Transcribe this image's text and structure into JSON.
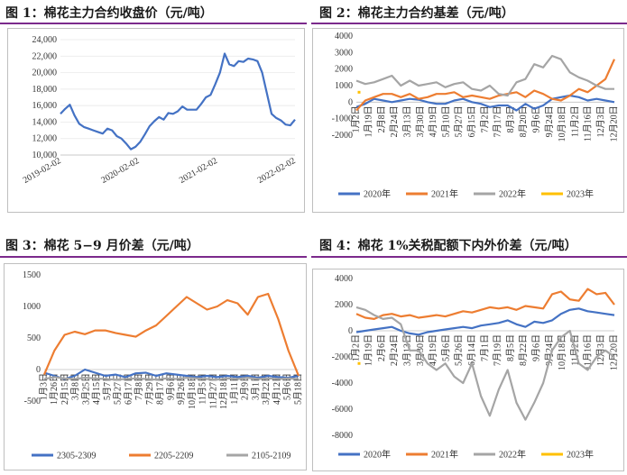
{
  "panels": [
    {
      "title": "图 1：棉花主力合约收盘价（元/吨）",
      "chart_data": {
        "type": "line",
        "y_ticks": [
          "10,000",
          "12,000",
          "14,000",
          "16,000",
          "18,000",
          "20,000",
          "22,000",
          "24,000"
        ],
        "x_ticks": [
          "2019-02-02",
          "2020-02-02",
          "2021-02-02",
          "2022-02-02"
        ],
        "ylim": [
          10000,
          24000
        ],
        "x": [
          0,
          5,
          10,
          15,
          20,
          25,
          30,
          35,
          40,
          45,
          50,
          55,
          60,
          65,
          70,
          75,
          80,
          85,
          90,
          95,
          100,
          105,
          110,
          115,
          120,
          125,
          130,
          135,
          140,
          145,
          150,
          155,
          160,
          165,
          170,
          175,
          180,
          185,
          190,
          195,
          200,
          205,
          210,
          215,
          220,
          225,
          230,
          235,
          240,
          245,
          250
        ],
        "series": [
          {
            "color": "#4472c4",
            "values": [
              15000,
              15600,
              16100,
              14800,
              13800,
              13400,
              13200,
              13000,
              12800,
              12600,
              13200,
              13000,
              12300,
              12000,
              11400,
              10700,
              11000,
              11600,
              12500,
              13500,
              14100,
              14600,
              14300,
              15100,
              15000,
              15300,
              15900,
              15500,
              15500,
              15500,
              16200,
              17000,
              17300,
              18600,
              20000,
              22300,
              21000,
              20800,
              21400,
              21300,
              21700,
              21600,
              21400,
              20000,
              17500,
              15000,
              14500,
              14200,
              13700,
              13600,
              14300
            ]
          }
        ]
      }
    },
    {
      "title": "图 2：棉花主力合约基差（元/吨）",
      "chart_data": {
        "type": "line",
        "y_ticks": [
          "4000",
          "3000",
          "2000",
          "1000",
          "0",
          "-1000",
          "-2000"
        ],
        "x_ticks": [
          "1月2日",
          "1月19日",
          "2月8日",
          "2月24日",
          "3月13日",
          "3月30日",
          "4月19日",
          "5月10日",
          "5月27日",
          "6月15日",
          "7月2日",
          "7月17日",
          "8月3日",
          "8月20日",
          "9月6日",
          "9月24日",
          "10月18日",
          "11月2日",
          "11月16日",
          "12月3日",
          "12月20日"
        ],
        "ylim": [
          -2000,
          4000
        ],
        "series": [
          {
            "name": "2020年",
            "color": "#4472c4",
            "values": [
              -300,
              -100,
              200,
              100,
              0,
              100,
              200,
              150,
              0,
              -100,
              -100,
              100,
              200,
              0,
              -100,
              -300,
              -200,
              -200,
              -500,
              -100,
              -400,
              -200,
              200,
              300,
              400,
              300,
              100,
              200,
              100,
              0
            ]
          },
          {
            "name": "2021年",
            "color": "#ed7d31",
            "values": [
              -500,
              100,
              300,
              500,
              500,
              300,
              500,
              200,
              300,
              500,
              500,
              600,
              300,
              400,
              300,
              200,
              400,
              500,
              600,
              300,
              700,
              500,
              200,
              100,
              400,
              800,
              600,
              1000,
              1400,
              2600
            ]
          },
          {
            "name": "2022年",
            "color": "#a5a5a5",
            "values": [
              1300,
              1100,
              1200,
              1400,
              1600,
              1000,
              1300,
              1000,
              1100,
              1200,
              900,
              1100,
              1200,
              800,
              700,
              1000,
              500,
              400,
              1200,
              1400,
              2300,
              2100,
              2800,
              2600,
              1800,
              1500,
              1300,
              1000,
              800,
              800
            ]
          },
          {
            "name": "2023年",
            "color": "#ffc000",
            "values": [
              600
            ]
          }
        ]
      }
    },
    {
      "title": "图 3：棉花 5−9 月价差（元/吨）",
      "chart_data": {
        "type": "line",
        "y_ticks": [
          "1500",
          "1000",
          "500",
          "0",
          "-500"
        ],
        "x_ticks": [
          "1月3日",
          "1月26日",
          "2月15日",
          "3月8日",
          "3月25日",
          "4月15日",
          "5月7日",
          "5月27日",
          "6月17日",
          "7月8日",
          "7月29日",
          "8月17日",
          "9月6日",
          "9月26日",
          "10月18日",
          "11月5日",
          "11月27日",
          "12月18日",
          "1月11日",
          "2月9日",
          "3月1日",
          "3月22日",
          "4月12日",
          "5月6日",
          "5月18日"
        ],
        "ylim": [
          -500,
          1500
        ],
        "series": [
          {
            "name": "2305-2309",
            "color": "#4472c4",
            "values": [
              -50,
              -100,
              -150,
              -100,
              0,
              -50,
              -100,
              -80,
              -120,
              -60,
              -50,
              -100,
              -60,
              -80,
              -100,
              -120,
              -100,
              -120,
              -100,
              -120,
              -100,
              -130,
              -100,
              -120,
              -130,
              -100
            ]
          },
          {
            "name": "2205-2209",
            "color": "#ed7d31",
            "values": [
              -80,
              300,
              550,
              600,
              560,
              620,
              620,
              580,
              550,
              520,
              620,
              700,
              850,
              1000,
              1150,
              1050,
              950,
              1000,
              1100,
              1050,
              870,
              1150,
              1200,
              800,
              300,
              -100
            ]
          },
          {
            "name": "2105-2109",
            "color": "#a5a5a5",
            "values": [
              -150,
              -120,
              -140,
              -150,
              -130,
              -140,
              -150,
              -160,
              -150,
              -140,
              -150,
              -160,
              -140,
              -150,
              -130,
              -140,
              -150,
              -160,
              -140,
              -150,
              -130,
              -150,
              -140,
              -150,
              -140,
              -150
            ]
          }
        ]
      }
    },
    {
      "title": "图 4：棉花 1%关税配额下内外价差（元/吨）",
      "chart_data": {
        "type": "line",
        "y_ticks": [
          "4000",
          "2000",
          "0",
          "-2000",
          "-4000",
          "-6000",
          "-8000"
        ],
        "x_ticks": [
          "1月2日",
          "1月19日",
          "2月6日",
          "2月24日",
          "3月13日",
          "3月30日",
          "4月19日",
          "5月6日",
          "5月26日",
          "6月14日",
          "7月1日",
          "7月19日",
          "8月5日",
          "8月22日",
          "9月6日",
          "9月24日",
          "10月18日",
          "11月2日",
          "11月16日",
          "12月3日",
          "12月20日"
        ],
        "ylim": [
          -8000,
          4000
        ],
        "series": [
          {
            "name": "2020年",
            "color": "#4472c4",
            "values": [
              -100,
              0,
              100,
              200,
              300,
              0,
              -200,
              -300,
              -100,
              0,
              100,
              200,
              300,
              200,
              400,
              500,
              600,
              800,
              500,
              300,
              700,
              600,
              800,
              1300,
              1600,
              1700,
              1500,
              1400,
              1300,
              1200
            ]
          },
          {
            "name": "2021年",
            "color": "#ed7d31",
            "values": [
              1300,
              1000,
              900,
              1200,
              1300,
              1100,
              1200,
              1000,
              1100,
              1200,
              1100,
              1300,
              1500,
              1400,
              1600,
              1800,
              1700,
              1800,
              1600,
              1900,
              1800,
              1700,
              2800,
              3000,
              2400,
              2300,
              3200,
              2800,
              2900,
              2000
            ]
          },
          {
            "name": "2022年",
            "color": "#a5a5a5",
            "values": [
              1800,
              1600,
              1200,
              900,
              1000,
              500,
              -1500,
              -1500,
              -2500,
              -3000,
              -2500,
              -3500,
              -4000,
              -2500,
              -5000,
              -6500,
              -4500,
              -3000,
              -5500,
              -6800,
              -5500,
              -4000,
              -1500,
              -500,
              0,
              -2500,
              -3000,
              -2000,
              -1500,
              -2000
            ]
          },
          {
            "name": "2023年",
            "color": "#ffc000",
            "values": [
              -2500
            ]
          }
        ]
      }
    }
  ]
}
